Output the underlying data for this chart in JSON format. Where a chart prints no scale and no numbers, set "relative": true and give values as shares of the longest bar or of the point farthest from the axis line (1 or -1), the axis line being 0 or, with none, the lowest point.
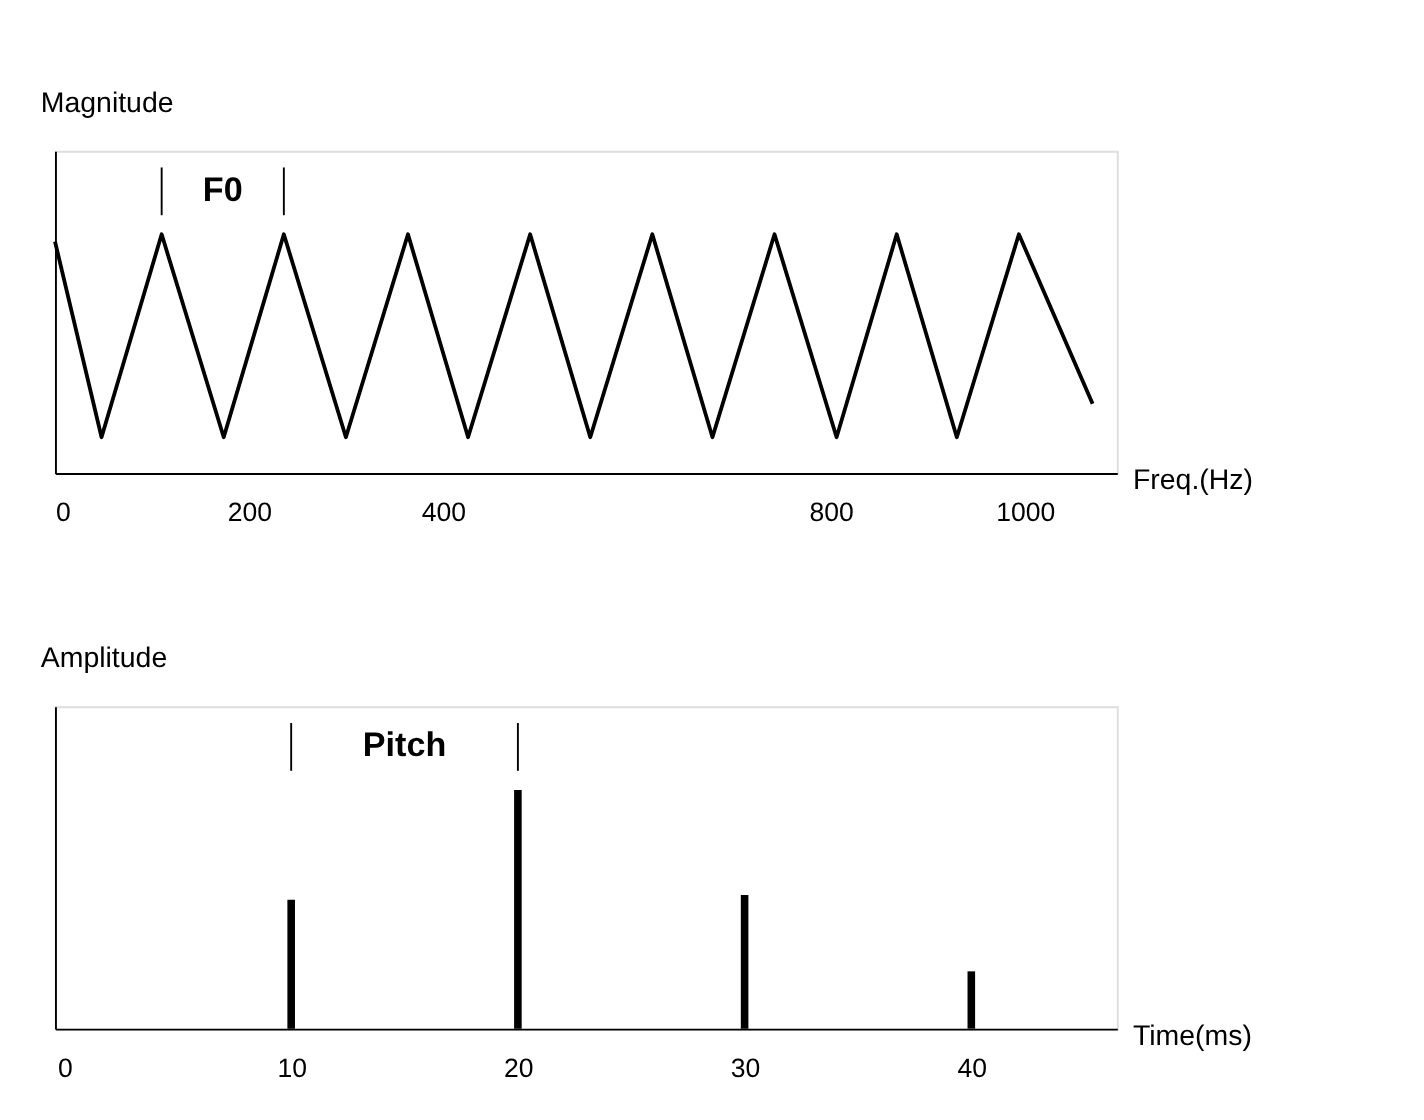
{
  "chart_data": [
    {
      "type": "line",
      "relative": true,
      "ylabel": "Magnitude",
      "xlabel": "Freq.(Hz)",
      "tick_labels": "x",
      "xlim": [
        0,
        1095
      ],
      "xticks": [
        0,
        200,
        400,
        800,
        1000
      ],
      "annotations": [
        "F0"
      ],
      "grid": false,
      "legend": false,
      "x": [
        0,
        48,
        110,
        174,
        236,
        300,
        364,
        426,
        490,
        552,
        616,
        678,
        742,
        806,
        868,
        930,
        994,
        1070
      ],
      "series": [
        {
          "color": "#000000",
          "values": [
            0.97,
            0.15,
            1,
            0.15,
            1,
            0.15,
            1,
            0.15,
            1,
            0.15,
            1,
            0.15,
            1,
            0.15,
            1,
            0.15,
            1,
            0.29
          ]
        }
      ]
    },
    {
      "type": "bar",
      "relative": true,
      "ylabel": "Amplitude",
      "xlabel": "Time(ms)",
      "tick_labels": "x",
      "xlim": [
        0,
        46
      ],
      "xticks": [
        0,
        10,
        20,
        30,
        40
      ],
      "annotations": [
        "Pitch"
      ],
      "grid": false,
      "legend": false,
      "x": [
        10,
        20,
        30,
        40
      ],
      "series": [
        {
          "color": "#000000",
          "values": [
            0.54,
            1,
            0.56,
            0.24
          ]
        }
      ]
    }
  ]
}
